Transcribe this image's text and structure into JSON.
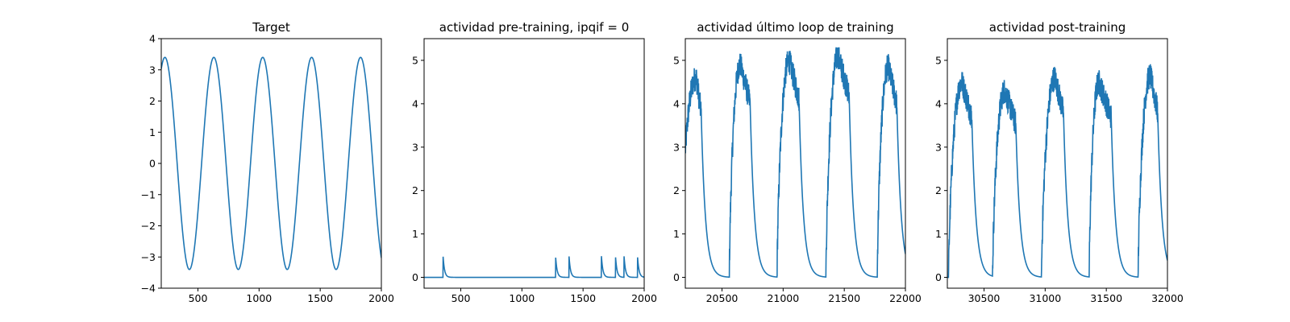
{
  "line_color": "#1f77b4",
  "chart_data": [
    {
      "type": "line",
      "title": "Target",
      "xlim": [
        200,
        2000
      ],
      "ylim": [
        -4,
        4
      ],
      "xticks": [
        500,
        1000,
        1500,
        2000
      ],
      "yticks": [
        -4,
        -3,
        -2,
        -1,
        0,
        1,
        2,
        3,
        4
      ],
      "series": [
        {
          "amplitude": 3.4,
          "period": 400,
          "peak_positions": [
            230,
            630,
            1030,
            1430,
            1830
          ],
          "trough_positions": [
            430,
            830,
            1230,
            1630
          ],
          "y_at_xmax": -2.9
        }
      ]
    },
    {
      "type": "line",
      "title": "actividad pre-training, ipqif = 0",
      "xlim": [
        200,
        2000
      ],
      "ylim": [
        -0.25,
        5.5
      ],
      "xticks": [
        500,
        1000,
        1500,
        2000
      ],
      "yticks": [
        0,
        1,
        2,
        3,
        4,
        5
      ],
      "series": [
        {
          "baseline": 0,
          "spike_times": [
            355,
            1275,
            1385,
            1650,
            1765,
            1835,
            1945
          ],
          "spike_height": 0.5,
          "decay_time": 12
        }
      ]
    },
    {
      "type": "line",
      "title": "actividad último loop de training",
      "xlim": [
        20200,
        22000
      ],
      "ylim": [
        -0.25,
        5.5
      ],
      "xticks": [
        20500,
        21000,
        21500,
        22000
      ],
      "yticks": [
        0,
        1,
        2,
        3,
        4,
        5
      ],
      "series": [
        {
          "baseline": 0,
          "bursts": [
            {
              "start": 20160,
              "peak_time": 20290,
              "peak": 4.6,
              "end": 20330
            },
            {
              "start": 20560,
              "peak_time": 20650,
              "peak": 4.9,
              "end": 20730
            },
            {
              "start": 20950,
              "peak_time": 21050,
              "peak": 5.0,
              "end": 21130
            },
            {
              "start": 21350,
              "peak_time": 21450,
              "peak": 5.1,
              "end": 21540
            },
            {
              "start": 21770,
              "peak_time": 21860,
              "peak": 4.85,
              "end": 21930
            }
          ],
          "decay_time": 35
        }
      ]
    },
    {
      "type": "line",
      "title": "actividad post-training",
      "xlim": [
        30200,
        32000
      ],
      "ylim": [
        -0.25,
        5.5
      ],
      "xticks": [
        30500,
        31000,
        31500,
        32000
      ],
      "yticks": [
        0,
        1,
        2,
        3,
        4,
        5
      ],
      "series": [
        {
          "baseline": 0,
          "bursts": [
            {
              "start": 30210,
              "peak_time": 30320,
              "peak": 4.5,
              "end": 30400
            },
            {
              "start": 30570,
              "peak_time": 30670,
              "peak": 4.3,
              "end": 30760
            },
            {
              "start": 30970,
              "peak_time": 31080,
              "peak": 4.6,
              "end": 31150
            },
            {
              "start": 31360,
              "peak_time": 31440,
              "peak": 4.5,
              "end": 31540
            },
            {
              "start": 31760,
              "peak_time": 31860,
              "peak": 4.65,
              "end": 31920
            }
          ],
          "decay_time": 35
        }
      ]
    }
  ]
}
